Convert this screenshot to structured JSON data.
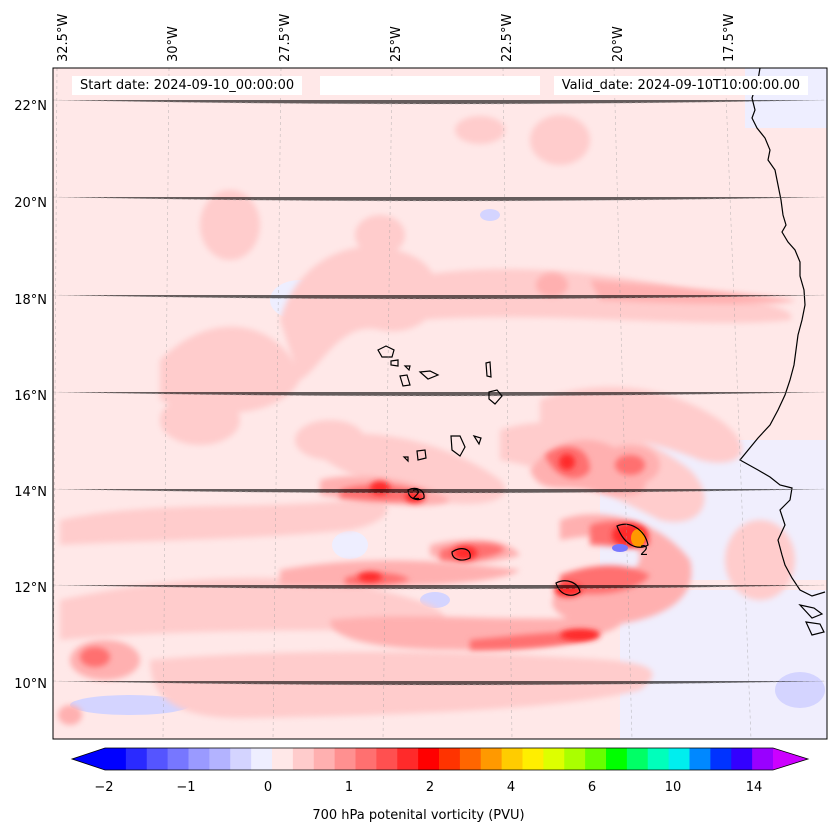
{
  "header": {
    "start_date": "Start date: 2024-09-10_00:00:00",
    "valid_date": "Valid_date: 2024-09-10T10:00:00.00"
  },
  "axes": {
    "lon_labels": [
      "32.5°W",
      "30°W",
      "27.5°W",
      "25°W",
      "22.5°W",
      "20°W",
      "17.5°W"
    ],
    "lat_labels": [
      "22°N",
      "20°N",
      "18°N",
      "16°N",
      "14°N",
      "12°N",
      "10°N"
    ]
  },
  "contour_labels": [
    "2",
    "2"
  ],
  "colorbar": {
    "title": "700 hPa potenital vorticity (PVU)",
    "tick_labels": [
      "−2",
      "−1",
      "0",
      "1",
      "2",
      "4",
      "6",
      "10",
      "14"
    ],
    "colors": [
      "#0000ff",
      "#2a2aff",
      "#5555ff",
      "#7777ff",
      "#9a9aff",
      "#b3b3ff",
      "#d4d4ff",
      "#eeeeff",
      "#ffe8e8",
      "#ffcccc",
      "#ffb0b0",
      "#ff9090",
      "#ff7070",
      "#ff5050",
      "#ff2a2a",
      "#ff0000",
      "#ff3300",
      "#ff6600",
      "#ff9900",
      "#ffcc00",
      "#ffee00",
      "#ddff00",
      "#aaff00",
      "#66ff00",
      "#00ff00",
      "#00ff66",
      "#00ffbb",
      "#00eeee",
      "#0088ff",
      "#0033ff",
      "#3300ff",
      "#9900ff"
    ],
    "under_color": "#0000ff",
    "over_color": "#cc00ff"
  }
}
